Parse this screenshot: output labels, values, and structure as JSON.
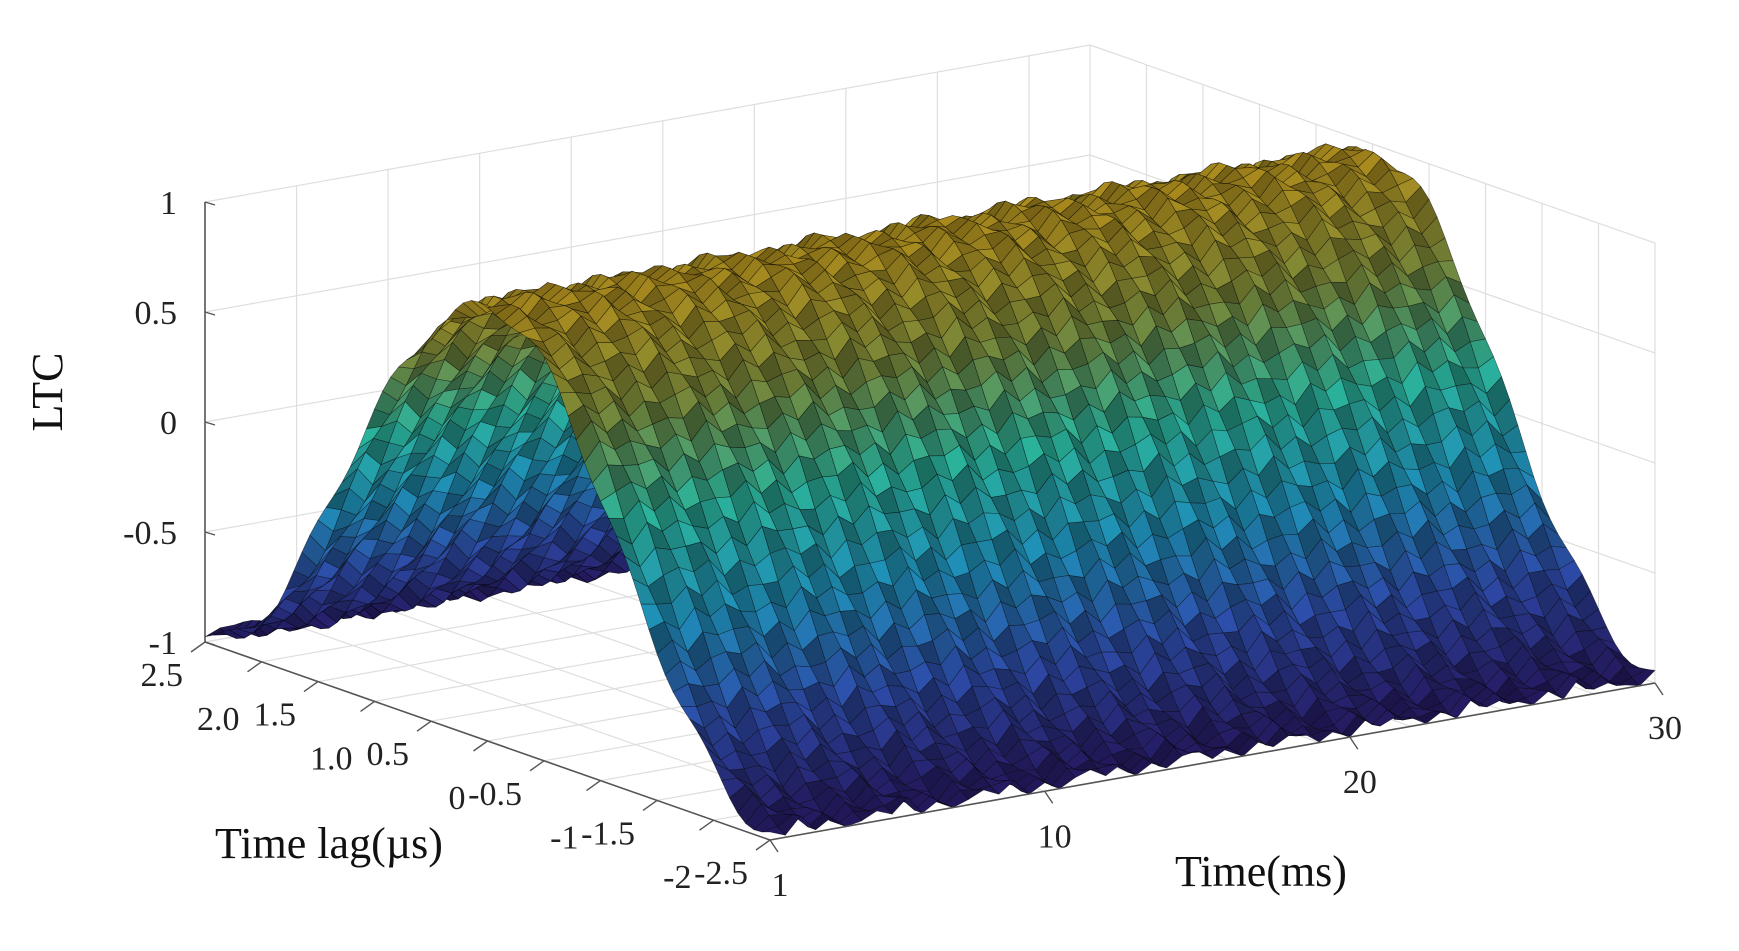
{
  "chart_data": {
    "type": "surface",
    "zlabel": "LTC",
    "xlabel": "Time lag(µs)",
    "ylabel": "Time(ms)",
    "zlim": [
      -1,
      1
    ],
    "xlim": [
      -2.5,
      2.5
    ],
    "ylim": [
      1,
      30
    ],
    "z_ticks": [
      "1",
      "0.5",
      "0",
      "-0.5",
      "-1"
    ],
    "x_ticks": [
      "2.5",
      "2.0",
      "1.5",
      "1.0",
      "0.5",
      "0",
      "-0.5",
      "-1",
      "-1.5",
      "-2",
      "-2.5"
    ],
    "y_ticks": [
      "1",
      "10",
      "20",
      "30"
    ],
    "z_tick_values": [
      1,
      0.5,
      0,
      -0.5,
      -1
    ],
    "x_tick_values": [
      2.5,
      2.0,
      1.5,
      1.0,
      0.5,
      0,
      -0.5,
      -1,
      -1.5,
      -2,
      -2.5
    ],
    "y_tick_values": [
      1,
      10,
      20,
      30
    ],
    "surface_model": "LTC ≈ cos(2π·0.2·lag) with small ripple",
    "grid": true,
    "colormap": [
      "#2a1a6b",
      "#2f4fb0",
      "#1f8fb8",
      "#2bb39a",
      "#7a8a3a",
      "#c7a020"
    ]
  }
}
